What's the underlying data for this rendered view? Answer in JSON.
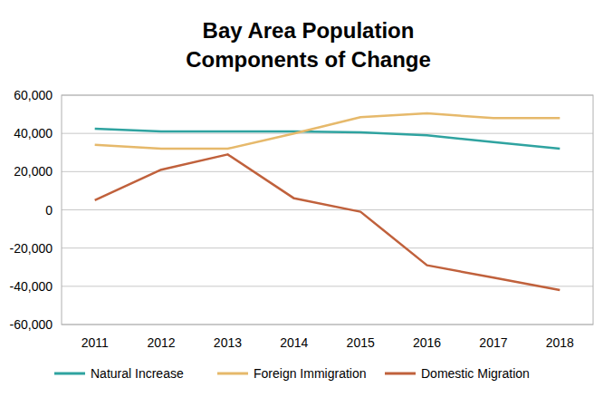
{
  "chart_data": {
    "type": "line",
    "title": "Bay Area Population Components of Change",
    "categories": [
      "2011",
      "2012",
      "2013",
      "2014",
      "2015",
      "2016",
      "2017",
      "2018"
    ],
    "series": [
      {
        "name": "Natural Increase",
        "color": "#2fa3a0",
        "values": [
          42500,
          41000,
          41000,
          41000,
          40500,
          39000,
          35500,
          32000
        ]
      },
      {
        "name": "Foreign Immigration",
        "color": "#e6b96b",
        "values": [
          34000,
          32000,
          32000,
          40000,
          48500,
          50500,
          48000,
          48000
        ]
      },
      {
        "name": "Domestic Migration",
        "color": "#c0613c",
        "values": [
          5000,
          21000,
          29000,
          6000,
          -1000,
          -29000,
          -35500,
          -42000
        ]
      }
    ],
    "ylim": [
      -60000,
      60000
    ],
    "yticks": [
      {
        "value": -60000,
        "label": "-60,000"
      },
      {
        "value": -40000,
        "label": "-40,000"
      },
      {
        "value": -20000,
        "label": "-20,000"
      },
      0,
      {
        "value": 20000,
        "label": "20,000"
      },
      {
        "value": 40000,
        "label": "40,000"
      },
      {
        "value": 60000,
        "label": "60,000"
      }
    ],
    "grid": true,
    "legend": "bottom"
  }
}
